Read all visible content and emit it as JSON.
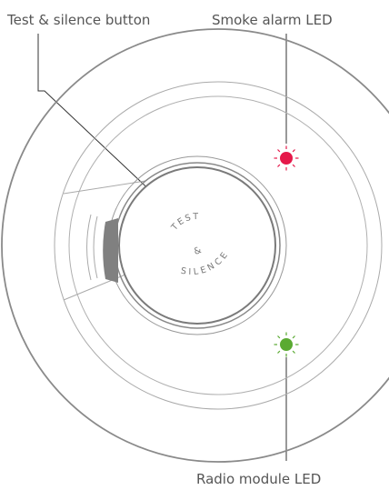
{
  "labels": {
    "test_button": "Test & silence button",
    "smoke_led": "Smoke alarm LED",
    "radio_led": "Radio module LED"
  },
  "button_text": {
    "line1": "TEST",
    "amp": "&",
    "line2": "SILENCE"
  },
  "colors": {
    "outline": "#8a8a8a",
    "smoke_led": "#e5194a",
    "radio_led": "#5aaa32",
    "slot": "#808080"
  }
}
